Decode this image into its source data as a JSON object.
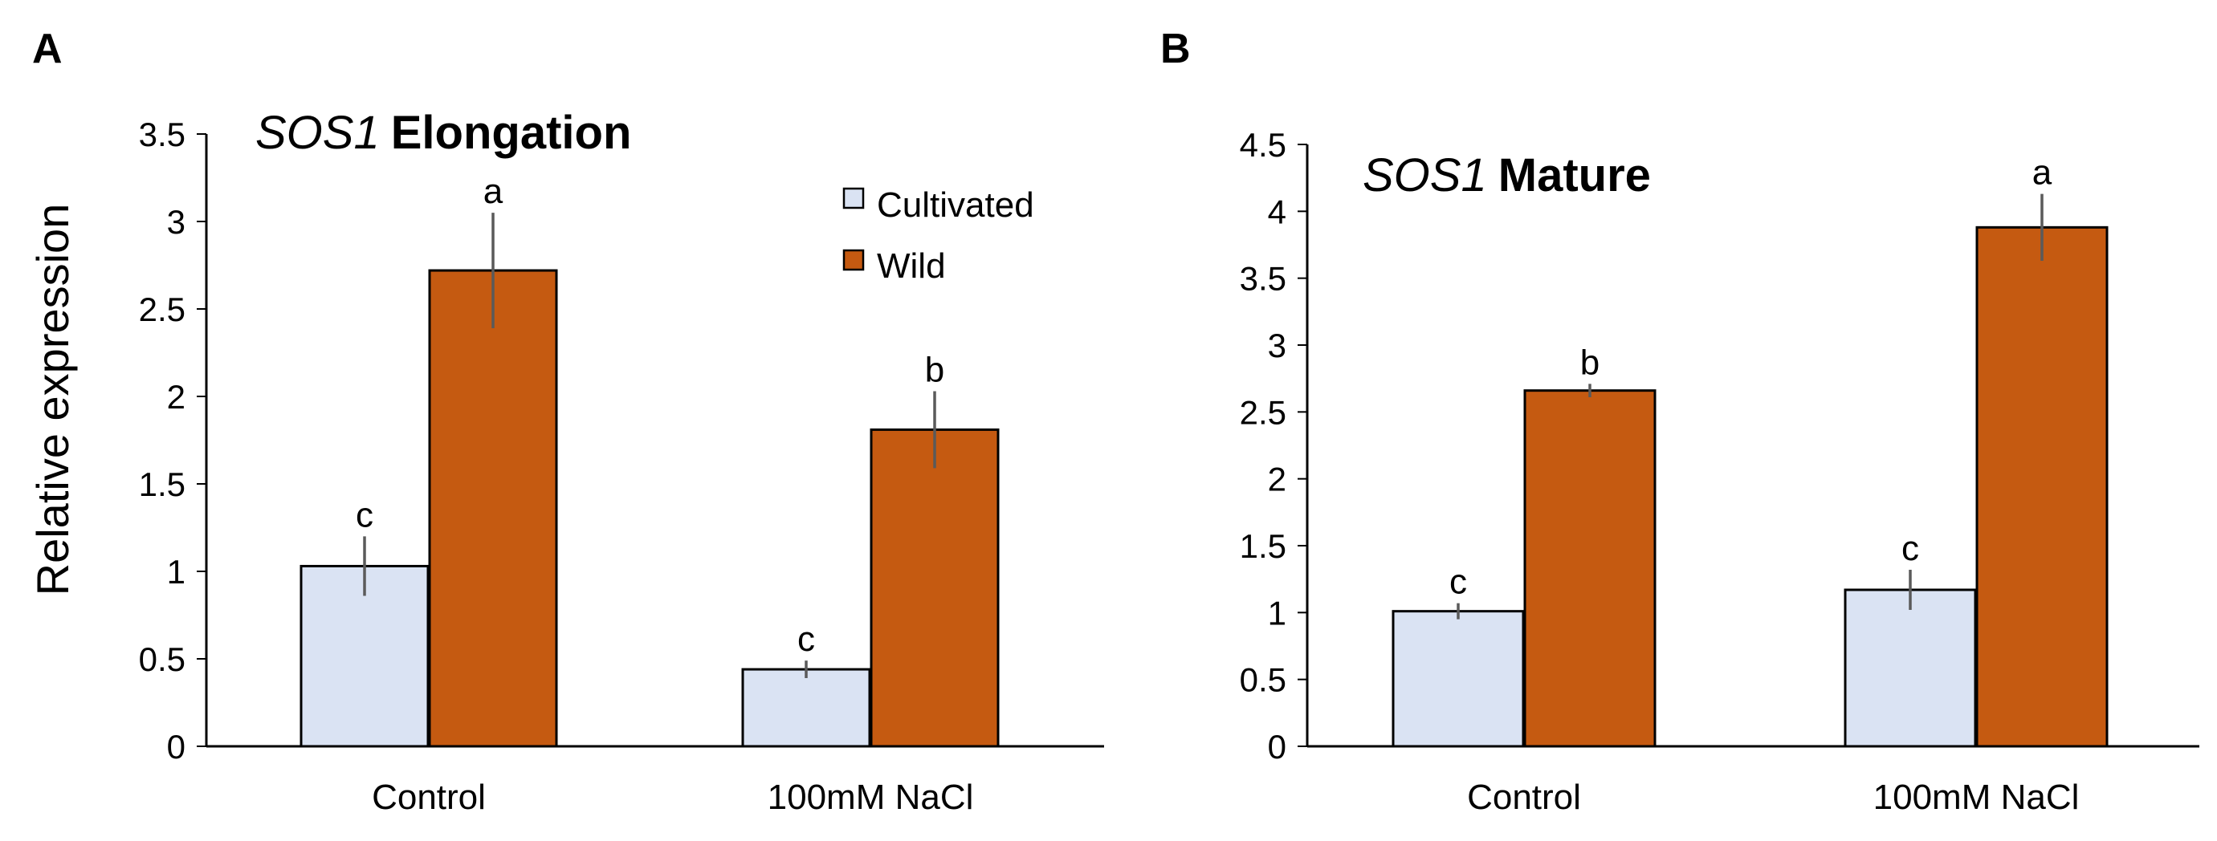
{
  "chart_data": [
    {
      "panel": "A",
      "type": "bar",
      "title_italic": "SOS1",
      "title_bold": "Elongation",
      "ylabel": "Relative expression",
      "xlabel": "",
      "categories": [
        "Control",
        "100mM NaCl"
      ],
      "ylim": [
        0,
        3.5
      ],
      "ytick_step": 0.5,
      "yticks": [
        "0",
        "0.5",
        "1",
        "1.5",
        "2",
        "2.5",
        "3",
        "3.5"
      ],
      "series": [
        {
          "name": "Cultivated",
          "color": "#dae3f3",
          "values": [
            1.03,
            0.44
          ],
          "errors": [
            0.17,
            0.05
          ],
          "letters": [
            "c",
            "c"
          ]
        },
        {
          "name": "Wild",
          "color": "#c55a11",
          "values": [
            2.72,
            1.81
          ],
          "errors": [
            0.33,
            0.22
          ],
          "letters": [
            "a",
            "b"
          ]
        }
      ],
      "legend": {
        "position": "top-right",
        "entries": [
          "Cultivated",
          "Wild"
        ]
      }
    },
    {
      "panel": "B",
      "type": "bar",
      "title_italic": "SOS1",
      "title_bold": "Mature",
      "ylabel": "",
      "xlabel": "",
      "categories": [
        "Control",
        "100mM NaCl"
      ],
      "ylim": [
        0,
        4.5
      ],
      "ytick_step": 0.5,
      "yticks": [
        "0",
        "0.5",
        "1",
        "1.5",
        "2",
        "2.5",
        "3",
        "3.5",
        "4",
        "4.5"
      ],
      "series": [
        {
          "name": "Cultivated",
          "color": "#dae3f3",
          "values": [
            1.01,
            1.17
          ],
          "errors": [
            0.06,
            0.15
          ],
          "letters": [
            "c",
            "c"
          ]
        },
        {
          "name": "Wild",
          "color": "#c55a11",
          "values": [
            2.66,
            3.88
          ],
          "errors": [
            0.05,
            0.25
          ],
          "letters": [
            "b",
            "a"
          ]
        }
      ]
    }
  ]
}
